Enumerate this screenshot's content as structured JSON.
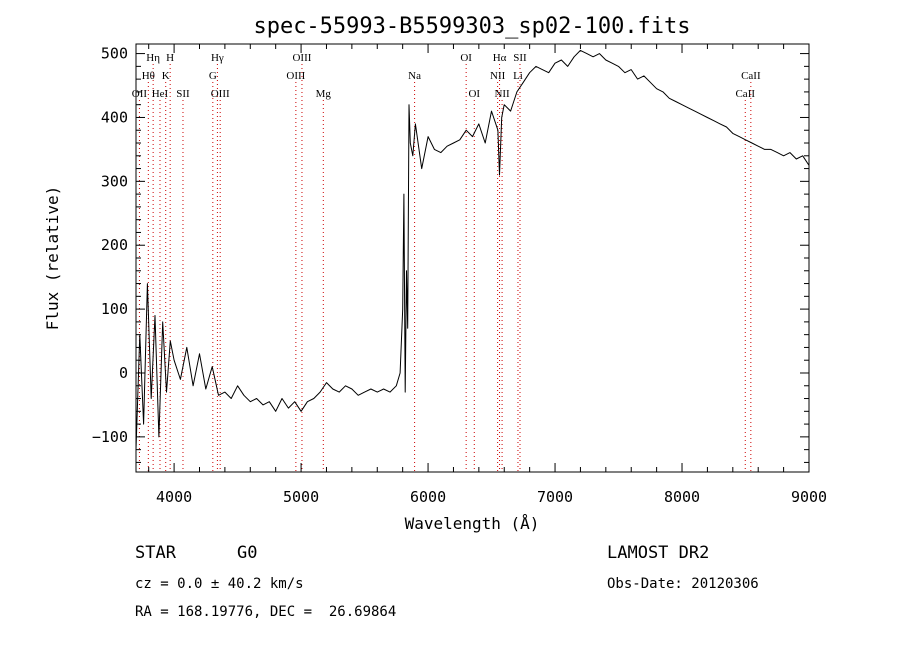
{
  "info": {
    "class_label": "STAR",
    "subclass": "G0",
    "survey": "LAMOST DR2",
    "cz": "cz = 0.0 ± 40.2 km/s",
    "obs_date": "Obs-Date: 20120306",
    "coords": "RA = 168.19776, DEC =  26.69864"
  },
  "chart_data": {
    "type": "line",
    "title": "spec-55993-B5599303_sp02-100.fits",
    "xlabel": "Wavelength (Å)",
    "ylabel": "Flux (relative)",
    "xlim": [
      3700,
      9000
    ],
    "ylim": [
      -155,
      515
    ],
    "x_ticks": [
      4000,
      5000,
      6000,
      7000,
      8000,
      9000
    ],
    "y_ticks": [
      -100,
      0,
      100,
      200,
      300,
      400,
      500
    ],
    "line_color": "#000000",
    "marker_color": "#cc0000",
    "series": [
      {
        "x": [
          3700,
          3730,
          3760,
          3790,
          3820,
          3850,
          3880,
          3910,
          3940,
          3970,
          4000,
          4050,
          4100,
          4150,
          4200,
          4250,
          4300,
          4350,
          4400,
          4450,
          4500,
          4550,
          4600,
          4650,
          4700,
          4750,
          4800,
          4850,
          4900,
          4950,
          5000,
          5050,
          5100,
          5150,
          5200,
          5250,
          5300,
          5350,
          5400,
          5450,
          5500,
          5550,
          5600,
          5650,
          5700,
          5750,
          5780,
          5800,
          5810,
          5820,
          5830,
          5840,
          5850,
          5860,
          5880,
          5900,
          5950,
          6000,
          6050,
          6100,
          6150,
          6200,
          6250,
          6300,
          6350,
          6400,
          6450,
          6500,
          6550,
          6563,
          6580,
          6600,
          6650,
          6700,
          6750,
          6800,
          6850,
          6900,
          6950,
          7000,
          7050,
          7100,
          7150,
          7200,
          7250,
          7300,
          7350,
          7400,
          7450,
          7500,
          7550,
          7600,
          7650,
          7700,
          7750,
          7800,
          7850,
          7900,
          7950,
          8000,
          8050,
          8100,
          8150,
          8200,
          8250,
          8300,
          8350,
          8400,
          8450,
          8500,
          8550,
          8600,
          8650,
          8700,
          8750,
          8800,
          8850,
          8900,
          8950,
          9000
        ],
        "y": [
          -120,
          60,
          -80,
          140,
          -40,
          90,
          -100,
          80,
          -30,
          50,
          20,
          -10,
          40,
          -20,
          30,
          -25,
          10,
          -35,
          -30,
          -40,
          -20,
          -35,
          -45,
          -40,
          -50,
          -45,
          -60,
          -40,
          -55,
          -45,
          -60,
          -45,
          -40,
          -30,
          -15,
          -25,
          -30,
          -20,
          -25,
          -35,
          -30,
          -25,
          -30,
          -25,
          -30,
          -20,
          0,
          100,
          280,
          -30,
          160,
          70,
          420,
          360,
          340,
          390,
          320,
          370,
          350,
          345,
          355,
          360,
          365,
          380,
          370,
          390,
          360,
          410,
          380,
          310,
          400,
          420,
          410,
          440,
          455,
          470,
          480,
          475,
          470,
          485,
          490,
          480,
          495,
          505,
          500,
          495,
          500,
          490,
          485,
          480,
          470,
          475,
          460,
          465,
          455,
          445,
          440,
          430,
          425,
          420,
          415,
          410,
          405,
          400,
          395,
          390,
          385,
          375,
          370,
          365,
          360,
          355,
          350,
          350,
          345,
          340,
          345,
          335,
          340,
          325
        ]
      }
    ],
    "lines": [
      {
        "label": "Hη",
        "x": 3835,
        "row": 0
      },
      {
        "label": "H",
        "x": 3969,
        "row": 0
      },
      {
        "label": "Hθ",
        "x": 3797,
        "row": 1
      },
      {
        "label": "K",
        "x": 3934,
        "row": 1
      },
      {
        "label": "OII",
        "x": 3727,
        "row": 2
      },
      {
        "label": "HeI",
        "x": 3889,
        "row": 2
      },
      {
        "label": "SII",
        "x": 4070,
        "row": 2
      },
      {
        "label": "Hγ",
        "x": 4341,
        "row": 0
      },
      {
        "label": "G",
        "x": 4305,
        "row": 1
      },
      {
        "label": "OIII",
        "x": 4363,
        "row": 2
      },
      {
        "label": "OIII",
        "x": 5007,
        "row": 0
      },
      {
        "label": "OIII",
        "x": 4959,
        "row": 1
      },
      {
        "label": "Mg",
        "x": 5175,
        "row": 2
      },
      {
        "label": "Na",
        "x": 5894,
        "row": 1
      },
      {
        "label": "OI",
        "x": 6300,
        "row": 0
      },
      {
        "label": "OI",
        "x": 6364,
        "row": 2
      },
      {
        "label": "Hα",
        "x": 6563,
        "row": 0
      },
      {
        "label": "SII",
        "x": 6724,
        "row": 0
      },
      {
        "label": "NII",
        "x": 6548,
        "row": 1
      },
      {
        "label": "Li",
        "x": 6708,
        "row": 1
      },
      {
        "label": "NII",
        "x": 6583,
        "row": 2
      },
      {
        "label": "CaII",
        "x": 8542,
        "row": 1
      },
      {
        "label": "CaII",
        "x": 8498,
        "row": 2
      }
    ]
  }
}
